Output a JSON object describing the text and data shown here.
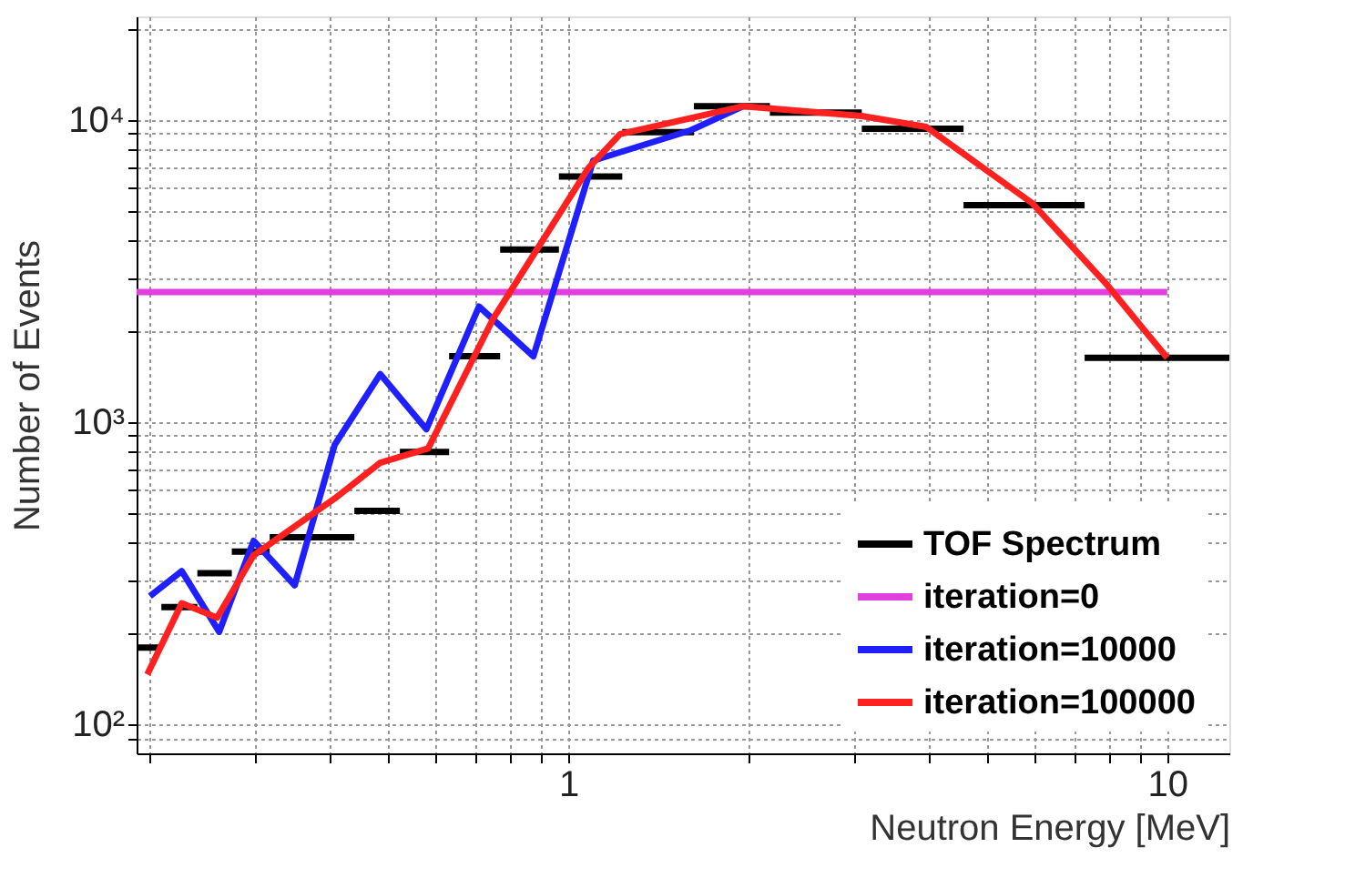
{
  "chart_data": {
    "type": "line",
    "xlabel": "Neutron Energy [MeV]",
    "ylabel": "Number of Events",
    "log": "xy",
    "grid": true,
    "legend": "bottom right",
    "xlim": [
      0.19,
      12.7
    ],
    "ylim": [
      80,
      22000
    ],
    "xticks": [
      {
        "value": 0.2,
        "label": null
      },
      {
        "value": 0.3,
        "label": null
      },
      {
        "value": 0.4,
        "label": null
      },
      {
        "value": 0.5,
        "label": null
      },
      {
        "value": 0.6,
        "label": null
      },
      {
        "value": 0.7,
        "label": null
      },
      {
        "value": 0.8,
        "label": null
      },
      {
        "value": 0.9,
        "label": null
      },
      1,
      {
        "value": 2,
        "label": null
      },
      {
        "value": 3,
        "label": null
      },
      {
        "value": 4,
        "label": null
      },
      {
        "value": 5,
        "label": null
      },
      {
        "value": 6,
        "label": null
      },
      {
        "value": 7,
        "label": null
      },
      {
        "value": 8,
        "label": null
      },
      {
        "value": 9,
        "label": null
      },
      10
    ],
    "yticks": [
      {
        "value": 90,
        "label": null
      },
      {
        "value": 100,
        "label": "10²"
      },
      {
        "value": 200,
        "label": null
      },
      {
        "value": 300,
        "label": null
      },
      {
        "value": 400,
        "label": null
      },
      {
        "value": 500,
        "label": null
      },
      {
        "value": 600,
        "label": null
      },
      {
        "value": 700,
        "label": null
      },
      {
        "value": 800,
        "label": null
      },
      {
        "value": 900,
        "label": null
      },
      {
        "value": 1000,
        "label": "10³"
      },
      {
        "value": 2000,
        "label": null
      },
      {
        "value": 3000,
        "label": null
      },
      {
        "value": 4000,
        "label": null
      },
      {
        "value": 5000,
        "label": null
      },
      {
        "value": 6000,
        "label": null
      },
      {
        "value": 7000,
        "label": null
      },
      {
        "value": 8000,
        "label": null
      },
      {
        "value": 9000,
        "label": null
      },
      {
        "value": 10000,
        "label": "10⁴"
      },
      {
        "value": 20000,
        "label": null
      }
    ],
    "series": [
      {
        "name": "TOF Spectrum",
        "color": "#000000",
        "x": [
          0.19,
          0.209,
          null,
          0.209,
          0.24,
          null,
          0.24,
          0.274,
          null,
          0.274,
          0.317,
          null,
          0.317,
          0.439,
          null,
          0.439,
          0.523,
          null,
          0.523,
          0.632,
          null,
          0.632,
          0.769,
          null,
          0.769,
          0.964,
          null,
          0.964,
          1.23,
          null,
          1.23,
          1.62,
          null,
          1.62,
          2.17,
          null,
          2.17,
          3.09,
          null,
          3.09,
          4.57,
          null,
          4.57,
          7.28,
          null,
          7.28,
          12.7
        ],
        "values": [
          179,
          179,
          null,
          244,
          244,
          null,
          316,
          316,
          null,
          372,
          372,
          null,
          415,
          415,
          null,
          508,
          508,
          null,
          795,
          795,
          null,
          1650,
          1650,
          null,
          3720,
          3720,
          null,
          6490,
          6490,
          null,
          9100,
          9100,
          null,
          11100,
          11100,
          null,
          10560,
          10560,
          null,
          9340,
          9340,
          null,
          5220,
          5220,
          null,
          1630,
          1630
        ]
      },
      {
        "name": "iteration=0",
        "color": "#e040e0",
        "x": [
          0.19,
          10
        ],
        "values": [
          2690,
          2690
        ]
      },
      {
        "name": "iteration=10000",
        "color": "#2020ff",
        "x": [
          0.2,
          0.226,
          0.261,
          0.298,
          0.349,
          0.407,
          0.485,
          0.579,
          0.709,
          0.874,
          1.1,
          1.6,
          1.96
        ],
        "values": [
          265,
          321,
          202,
          404,
          288,
          840,
          1440,
          946,
          2410,
          1650,
          7330,
          9230,
          11100
        ]
      },
      {
        "name": "iteration=100000",
        "color": "#ff2020",
        "x": [
          0.198,
          0.226,
          0.259,
          0.298,
          0.407,
          0.485,
          0.583,
          0.748,
          1.08,
          1.22,
          1.96,
          3.09,
          3.96,
          5.95,
          7.94,
          10
        ],
        "values": [
          146,
          251,
          225,
          362,
          558,
          733,
          817,
          2190,
          6930,
          8970,
          11100,
          10300,
          9470,
          5300,
          2840,
          1630
        ]
      }
    ]
  }
}
